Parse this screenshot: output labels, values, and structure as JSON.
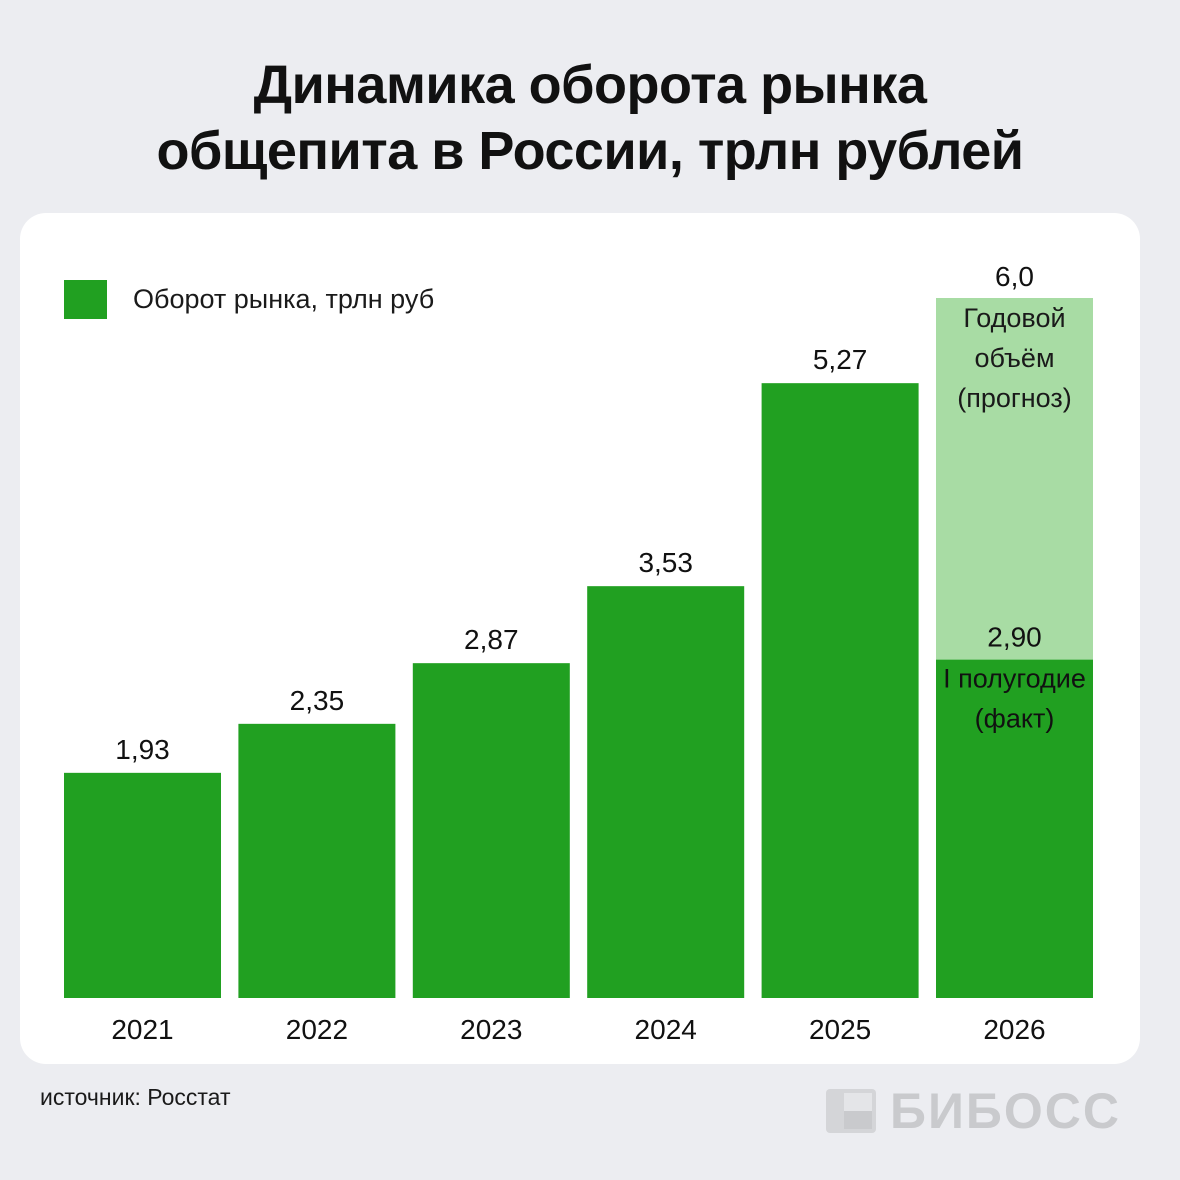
{
  "title": {
    "line1": "Динамика оборота рынка",
    "line2": "общепита в России, трлн рублей"
  },
  "chart_data": {
    "type": "bar",
    "categories": [
      "2021",
      "2022",
      "2023",
      "2024",
      "2025",
      "2026"
    ],
    "series": [
      {
        "name": "Оборот рынка, трлн руб",
        "values": [
          1.93,
          2.35,
          2.87,
          3.53,
          5.27,
          2.9
        ]
      },
      {
        "values": [
          null,
          null,
          null,
          null,
          null,
          6.0
        ]
      }
    ],
    "labels": [
      "1,93",
      "2,35",
      "2,87",
      "3,53",
      "5,27",
      "2,90"
    ],
    "forecast_label": "6,0",
    "annotations": {
      "forecast": [
        "Годовой",
        "объём",
        "(прогноз)"
      ],
      "actual": [
        "I полугодие",
        "(факт)"
      ]
    },
    "ylim": [
      0,
      6.0
    ],
    "colors": {
      "actual": "#21a021",
      "forecast": "#a8dca4"
    },
    "legend_position": "top-left",
    "grid": false
  },
  "legend": {
    "label": "Оборот рынка, трлн руб"
  },
  "source": "источник: Росстат",
  "logo": {
    "text": "БИБОСС"
  }
}
